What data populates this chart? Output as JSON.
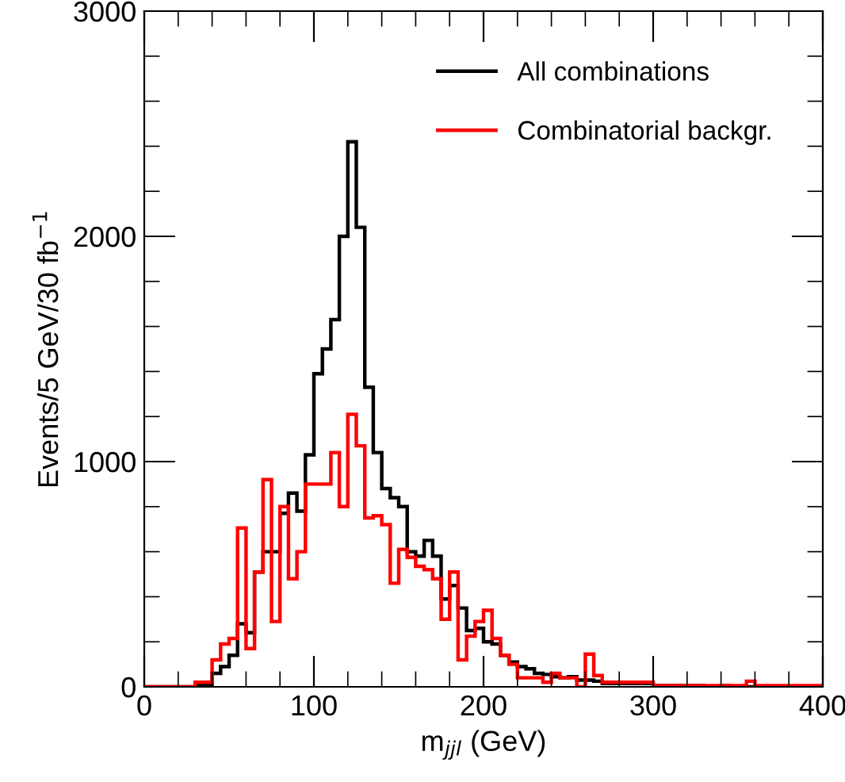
{
  "chart_data": {
    "type": "histogram",
    "xlabel": "m$_{jjl}$ (GeV)",
    "ylabel": "Events/5 GeV/30 fb$^{−1}$",
    "bins": [
      0,
      5,
      10,
      15,
      20,
      25,
      30,
      35,
      40,
      45,
      50,
      55,
      60,
      65,
      70,
      75,
      80,
      85,
      90,
      95,
      100,
      105,
      110,
      115,
      120,
      125,
      130,
      135,
      140,
      145,
      150,
      155,
      160,
      165,
      170,
      175,
      180,
      185,
      190,
      195,
      200,
      205,
      210,
      215,
      220,
      225,
      230,
      235,
      240,
      245,
      250,
      255,
      260,
      265,
      270,
      275,
      280,
      285,
      290,
      295,
      300,
      305,
      310,
      315,
      320,
      325,
      330,
      335,
      340,
      345,
      350,
      355,
      360,
      365,
      370,
      375,
      380,
      385,
      390,
      395,
      400
    ],
    "series": [
      {
        "name": "All combinations",
        "color": "#000000",
        "values": [
          0,
          0,
          0,
          0,
          0,
          0,
          10,
          10,
          60,
          90,
          140,
          280,
          240,
          510,
          600,
          600,
          770,
          860,
          780,
          1030,
          1390,
          1500,
          1630,
          2000,
          2420,
          2040,
          1330,
          1040,
          880,
          840,
          800,
          600,
          580,
          650,
          580,
          390,
          450,
          350,
          250,
          260,
          200,
          190,
          140,
          110,
          90,
          80,
          60,
          55,
          45,
          40,
          45,
          30,
          30,
          25,
          15,
          15,
          15,
          15,
          15,
          15,
          5,
          5,
          5,
          5,
          5,
          5,
          0,
          0,
          5,
          0,
          0,
          0,
          0,
          0,
          0,
          0,
          0,
          0,
          0,
          0
        ]
      },
      {
        "name": "Combinatorial backgr.",
        "color": "#ff0000",
        "values": [
          0,
          0,
          0,
          0,
          0,
          0,
          20,
          20,
          120,
          190,
          215,
          705,
          170,
          510,
          920,
          290,
          800,
          480,
          600,
          900,
          900,
          900,
          1040,
          800,
          1210,
          1070,
          750,
          760,
          720,
          460,
          610,
          575,
          535,
          520,
          480,
          300,
          510,
          120,
          225,
          290,
          340,
          215,
          140,
          100,
          40,
          40,
          40,
          20,
          60,
          40,
          40,
          0,
          145,
          50,
          20,
          20,
          20,
          20,
          20,
          20,
          5,
          5,
          5,
          5,
          5,
          5,
          5,
          5,
          5,
          5,
          5,
          25,
          5,
          5,
          5,
          5,
          5,
          5,
          5,
          5
        ]
      }
    ],
    "xlim": [
      0,
      400
    ],
    "ylim": [
      0,
      3000
    ],
    "xticks": [
      0,
      {
        "value": 20,
        "label": null
      },
      {
        "value": 40,
        "label": null
      },
      {
        "value": 60,
        "label": null
      },
      {
        "value": 80,
        "label": null
      },
      100,
      {
        "value": 120,
        "label": null
      },
      {
        "value": 140,
        "label": null
      },
      {
        "value": 160,
        "label": null
      },
      {
        "value": 180,
        "label": null
      },
      200,
      {
        "value": 220,
        "label": null
      },
      {
        "value": 240,
        "label": null
      },
      {
        "value": 260,
        "label": null
      },
      {
        "value": 280,
        "label": null
      },
      300,
      {
        "value": 320,
        "label": null
      },
      {
        "value": 340,
        "label": null
      },
      {
        "value": 360,
        "label": null
      },
      {
        "value": 380,
        "label": null
      },
      400
    ],
    "yticks": [
      0,
      {
        "value": 200,
        "label": null
      },
      {
        "value": 400,
        "label": null
      },
      {
        "value": 600,
        "label": null
      },
      {
        "value": 800,
        "label": null
      },
      1000,
      {
        "value": 1200,
        "label": null
      },
      {
        "value": 1400,
        "label": null
      },
      {
        "value": 1600,
        "label": null
      },
      {
        "value": 1800,
        "label": null
      },
      2000,
      {
        "value": 2200,
        "label": null
      },
      {
        "value": 2400,
        "label": null
      },
      {
        "value": 2600,
        "label": null
      },
      {
        "value": 2800,
        "label": null
      },
      3000
    ],
    "legend": "top right",
    "grid": false
  }
}
